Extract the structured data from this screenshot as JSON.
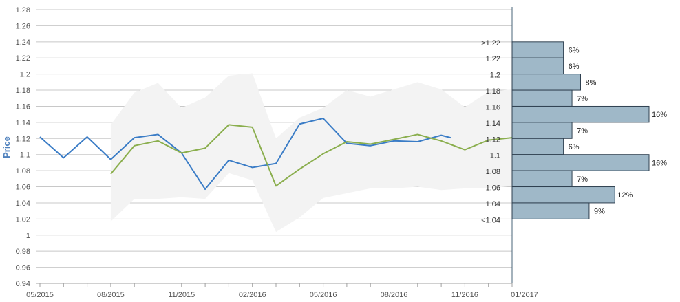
{
  "chart_data": {
    "type": "line",
    "ylabel": "Price",
    "xlabel": "",
    "ylim": [
      0.94,
      1.28
    ],
    "yticks": [
      "0.94",
      "0.96",
      "0.98",
      "1",
      "1.02",
      "1.04",
      "1.06",
      "1.08",
      "1.1",
      "1.12",
      "1.14",
      "1.16",
      "1.18",
      "1.2",
      "1.22",
      "1.24",
      "1.26",
      "1.28"
    ],
    "xticks": [
      "05/2015",
      "08/2015",
      "11/2015",
      "02/2016",
      "05/2016",
      "08/2016",
      "11/2016",
      "01/2017"
    ],
    "grid": true,
    "series": [
      {
        "color": "#3a7cc6",
        "x": [
          0,
          1,
          2,
          3,
          4,
          5,
          6,
          7,
          8,
          9,
          10,
          11,
          12,
          13,
          14,
          15,
          16,
          17,
          17.4
        ],
        "values": [
          1.122,
          1.096,
          1.122,
          1.094,
          1.121,
          1.125,
          1.102,
          1.057,
          1.093,
          1.084,
          1.089,
          1.138,
          1.145,
          1.114,
          1.111,
          1.117,
          1.116,
          1.124,
          1.121
        ]
      },
      {
        "color": "#8aae4d",
        "x": [
          3,
          4,
          5,
          6,
          7,
          8,
          9,
          10,
          11,
          12,
          13,
          14,
          15,
          16,
          17,
          18,
          19,
          20
        ],
        "values": [
          1.076,
          1.111,
          1.117,
          1.102,
          1.108,
          1.137,
          1.134,
          1.061,
          1.082,
          1.101,
          1.116,
          1.113,
          1.119,
          1.125,
          1.117,
          1.106,
          1.118,
          1.121
        ]
      }
    ],
    "range_band": {
      "color": "#f3f3f3",
      "x": [
        3,
        4,
        5,
        6,
        7,
        8,
        9,
        10,
        11,
        12,
        13,
        14,
        15,
        16,
        17,
        18,
        19,
        20
      ],
      "upper": [
        1.137,
        1.177,
        1.189,
        1.158,
        1.171,
        1.198,
        1.201,
        1.12,
        1.146,
        1.158,
        1.18,
        1.172,
        1.181,
        1.19,
        1.181,
        1.159,
        1.178,
        1.181
      ],
      "lower": [
        1.017,
        1.045,
        1.045,
        1.047,
        1.045,
        1.077,
        1.068,
        1.004,
        1.022,
        1.046,
        1.052,
        1.058,
        1.058,
        1.06,
        1.056,
        1.058,
        1.058,
        1.061
      ]
    },
    "distribution": {
      "bar_color": "#9fb8c8",
      "bars": [
        {
          "label": ">1.22",
          "low": 1.22,
          "high": 1.24,
          "pct": 6,
          "pct_label": "6%"
        },
        {
          "label": "1.22",
          "low": 1.2,
          "high": 1.22,
          "pct": 6,
          "pct_label": "6%"
        },
        {
          "label": "1.2",
          "low": 1.18,
          "high": 1.2,
          "pct": 8,
          "pct_label": "8%"
        },
        {
          "label": "1.18",
          "low": 1.16,
          "high": 1.18,
          "pct": 7,
          "pct_label": "7%"
        },
        {
          "label": "1.16",
          "low": 1.14,
          "high": 1.16,
          "pct": 16,
          "pct_label": "16%"
        },
        {
          "label": "1.14",
          "low": 1.12,
          "high": 1.14,
          "pct": 7,
          "pct_label": "7%"
        },
        {
          "label": "1.12",
          "low": 1.1,
          "high": 1.12,
          "pct": 6,
          "pct_label": "6%"
        },
        {
          "label": "1.1",
          "low": 1.08,
          "high": 1.1,
          "pct": 16,
          "pct_label": "16%"
        },
        {
          "label": "1.08",
          "low": 1.06,
          "high": 1.08,
          "pct": 7,
          "pct_label": "7%"
        },
        {
          "label": "1.06",
          "low": 1.04,
          "high": 1.06,
          "pct": 12,
          "pct_label": "12%"
        },
        {
          "label": "1.04",
          "low": 1.02,
          "high": 1.04,
          "pct": 9,
          "pct_label": "9%"
        },
        {
          "label": "<1.04",
          "low": 1.01,
          "high": 1.02,
          "pct": 0,
          "pct_label": ""
        }
      ]
    }
  }
}
